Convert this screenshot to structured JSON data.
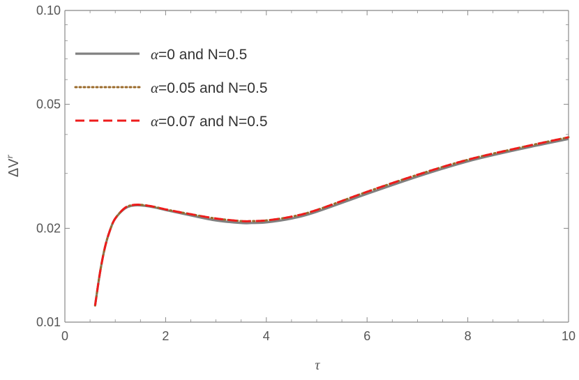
{
  "chart_data": {
    "type": "line",
    "title": "",
    "xlabel": "τ",
    "ylabel": "ΔV",
    "ylabel_superscript": "r",
    "xlim": [
      0,
      10
    ],
    "ylim": [
      0.01,
      0.1
    ],
    "y_scale": "log",
    "x_ticks": [
      0,
      2,
      4,
      6,
      8,
      10
    ],
    "x_tick_labels": [
      "0",
      "2",
      "4",
      "6",
      "8",
      "10"
    ],
    "y_ticks": [
      0.01,
      0.02,
      0.05,
      0.1
    ],
    "y_tick_labels": [
      "0.01",
      "0.02",
      "0.05",
      "0.10"
    ],
    "grid": false,
    "legend_position": "top-left",
    "series": [
      {
        "name": "α=0 and N=0.5",
        "name_parts": [
          "α",
          "=0 and N=0.5"
        ],
        "color": "#808080",
        "style": "solid",
        "x": [
          0.6,
          0.7,
          0.8,
          0.9,
          1.0,
          1.2,
          1.4,
          1.6,
          1.8,
          2.0,
          2.5,
          3.0,
          3.5,
          3.7,
          4.0,
          4.5,
          5.0,
          6.0,
          7.0,
          8.0,
          9.0,
          10.0
        ],
        "y": [
          0.0113,
          0.0145,
          0.0175,
          0.0198,
          0.0215,
          0.0232,
          0.0237,
          0.0236,
          0.0233,
          0.0229,
          0.022,
          0.0212,
          0.0208,
          0.0208,
          0.0209,
          0.0215,
          0.0226,
          0.0258,
          0.0293,
          0.0328,
          0.0358,
          0.0387
        ]
      },
      {
        "name": "α=0.05 and N=0.5",
        "name_parts": [
          "α",
          "=0.05 and N=0.5"
        ],
        "color": "#9a6a2a",
        "style": "dotted",
        "x": [
          0.6,
          0.7,
          0.8,
          0.9,
          1.0,
          1.2,
          1.4,
          1.6,
          1.8,
          2.0,
          2.5,
          3.0,
          3.5,
          3.7,
          4.0,
          4.5,
          5.0,
          6.0,
          7.0,
          8.0,
          9.0,
          10.0
        ],
        "y": [
          0.0113,
          0.0145,
          0.0175,
          0.0198,
          0.0215,
          0.0233,
          0.0238,
          0.0237,
          0.0234,
          0.023,
          0.0222,
          0.0215,
          0.0211,
          0.0211,
          0.0212,
          0.0218,
          0.0229,
          0.0262,
          0.0297,
          0.0332,
          0.0362,
          0.0392
        ]
      },
      {
        "name": "α=0.07 and N=0.5",
        "name_parts": [
          "α",
          "=0.07 and N=0.5"
        ],
        "color": "#ee1c1c",
        "style": "dashed",
        "x": [
          0.6,
          0.7,
          0.8,
          0.9,
          1.0,
          1.2,
          1.4,
          1.6,
          1.8,
          2.0,
          2.5,
          3.0,
          3.5,
          3.7,
          4.0,
          4.5,
          5.0,
          6.0,
          7.0,
          8.0,
          9.0,
          10.0
        ],
        "y": [
          0.0113,
          0.0145,
          0.0175,
          0.0198,
          0.0215,
          0.0233,
          0.0238,
          0.0237,
          0.0234,
          0.023,
          0.0222,
          0.0215,
          0.0211,
          0.0211,
          0.0212,
          0.0218,
          0.0229,
          0.0262,
          0.0297,
          0.0332,
          0.0362,
          0.0392
        ]
      }
    ]
  }
}
